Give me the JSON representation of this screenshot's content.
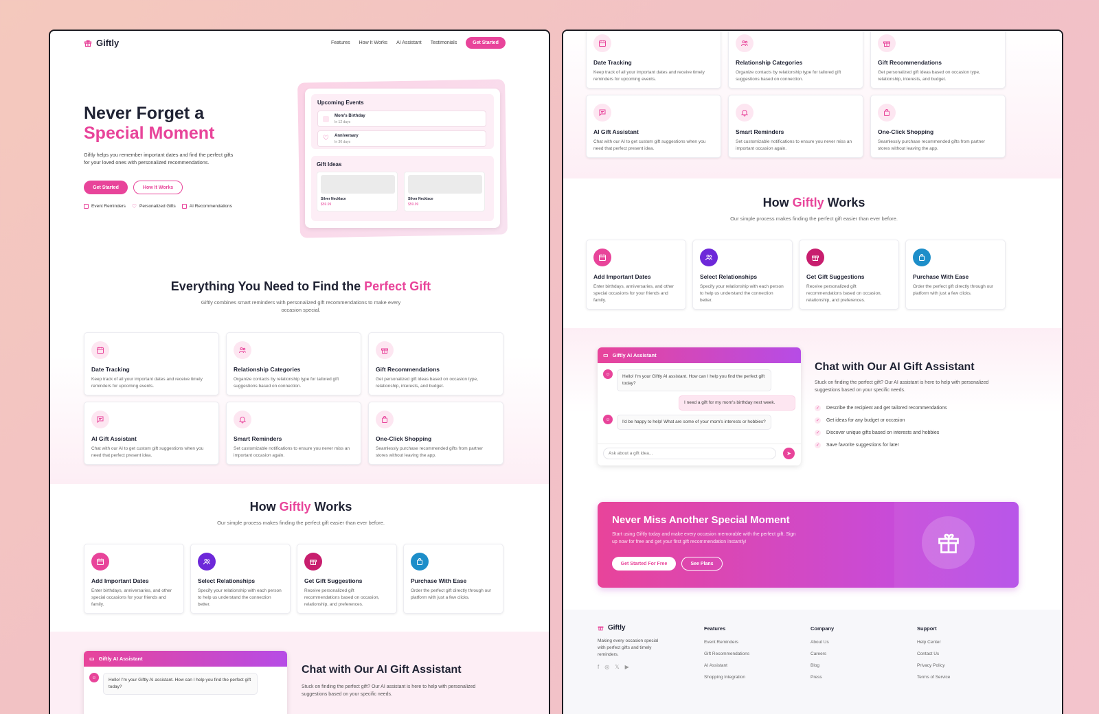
{
  "brand": "Giftly",
  "nav": {
    "links": [
      "Features",
      "How It Works",
      "AI Assistant",
      "Testimonials"
    ],
    "cta": "Get Started"
  },
  "hero": {
    "title_line1": "Never Forget a",
    "title_line2": "Special Moment",
    "description": "Giftly helps you remember important dates and find the perfect gifts for your loved ones with personalized recommendations.",
    "primary_btn": "Get Started",
    "secondary_btn": "How It Works",
    "badges": [
      "Event Reminders",
      "Personalized Gifts",
      "AI Recommendations"
    ],
    "mock": {
      "events_title": "Upcoming Events",
      "events": [
        {
          "name": "Mom's Birthday",
          "when": "In 12 days"
        },
        {
          "name": "Anniversary",
          "when": "In 30 days"
        }
      ],
      "gifts_title": "Gift Ideas",
      "gifts": [
        {
          "name": "Silver Necklace",
          "price": "$59.99"
        },
        {
          "name": "Silver Necklace",
          "price": "$59.99"
        }
      ]
    }
  },
  "features": {
    "title_a": "Everything You Need to Find the ",
    "title_b": "Perfect Gift",
    "subtitle": "Giftly combines smart reminders with personalized gift recommendations to make every occasion special.",
    "items": [
      {
        "title": "Date Tracking",
        "text": "Keep track of all your important dates and receive timely reminders for upcoming events.",
        "icon": "calendar-icon"
      },
      {
        "title": "Relationship Categories",
        "text": "Organize contacts by relationship type for tailored gift suggestions based on connection.",
        "icon": "users-icon"
      },
      {
        "title": "Gift Recommendations",
        "text": "Get personalized gift ideas based on occasion type, relationship, interests, and budget.",
        "icon": "gift-icon"
      },
      {
        "title": "AI Gift Assistant",
        "text": "Chat with our AI to get custom gift suggestions when you need that perfect present idea.",
        "icon": "chat-icon"
      },
      {
        "title": "Smart Reminders",
        "text": "Set customizable notifications to ensure you never miss an important occasion again.",
        "icon": "bell-icon"
      },
      {
        "title": "One-Click Shopping",
        "text": "Seamlessly purchase recommended gifts from partner stores without leaving the app.",
        "icon": "bag-icon"
      }
    ]
  },
  "how": {
    "title_a": "How ",
    "title_b": "Giftly",
    "title_c": " Works",
    "subtitle": "Our simple process makes finding the perfect gift easier than ever before.",
    "steps": [
      {
        "title": "Add Important Dates",
        "text": "Enter birthdays, anniversaries, and other special occasions for your friends and family.",
        "color": "#e8449a"
      },
      {
        "title": "Select Relationships",
        "text": "Specify your relationship with each person to help us understand the connection better.",
        "color": "#6d28d9"
      },
      {
        "title": "Get Gift Suggestions",
        "text": "Receive personalized gift recommendations based on occasion, relationship, and preferences.",
        "color": "#c81e6e"
      },
      {
        "title": "Purchase With Ease",
        "text": "Order the perfect gift directly through our platform with just a few clicks.",
        "color": "#1d8ec9"
      }
    ]
  },
  "chat": {
    "header": "Giftly AI Assistant",
    "msg1": "Hello! I'm your Giftly AI assistant. How can I help you find the perfect gift today?",
    "msg2": "I need a gift for my mom's birthday next week.",
    "msg3": "I'd be happy to help! What are some of your mom's interests or hobbies?",
    "placeholder": "Ask about a gift idea...",
    "title": "Chat with Our AI Gift Assistant",
    "subtitle": "Stuck on finding the perfect gift? Our AI assistant is here to help with personalized suggestions based on your specific needs.",
    "points": [
      "Describe the recipient and get tailored recommendations",
      "Get ideas for any budget or occasion",
      "Discover unique gifts based on interests and hobbies",
      "Save favorite suggestions for later"
    ]
  },
  "cta": {
    "title": "Never Miss Another Special Moment",
    "text": "Start using Giftly today and make every occasion memorable with the perfect gift. Sign up now for free and get your first gift recommendation instantly!",
    "primary": "Get Started For Free",
    "secondary": "See Plans"
  },
  "footer": {
    "tagline": "Making every occasion special with perfect gifts and timely reminders.",
    "cols": [
      {
        "title": "Features",
        "links": [
          "Event Reminders",
          "Gift Recommendations",
          "AI Assistant",
          "Shopping Integration"
        ]
      },
      {
        "title": "Company",
        "links": [
          "About Us",
          "Careers",
          "Blog",
          "Press"
        ]
      },
      {
        "title": "Support",
        "links": [
          "Help Center",
          "Contact Us",
          "Privacy Policy",
          "Terms of Service"
        ]
      }
    ]
  },
  "colors": {
    "accent": "#e8449a",
    "purple": "#b64ce6"
  }
}
